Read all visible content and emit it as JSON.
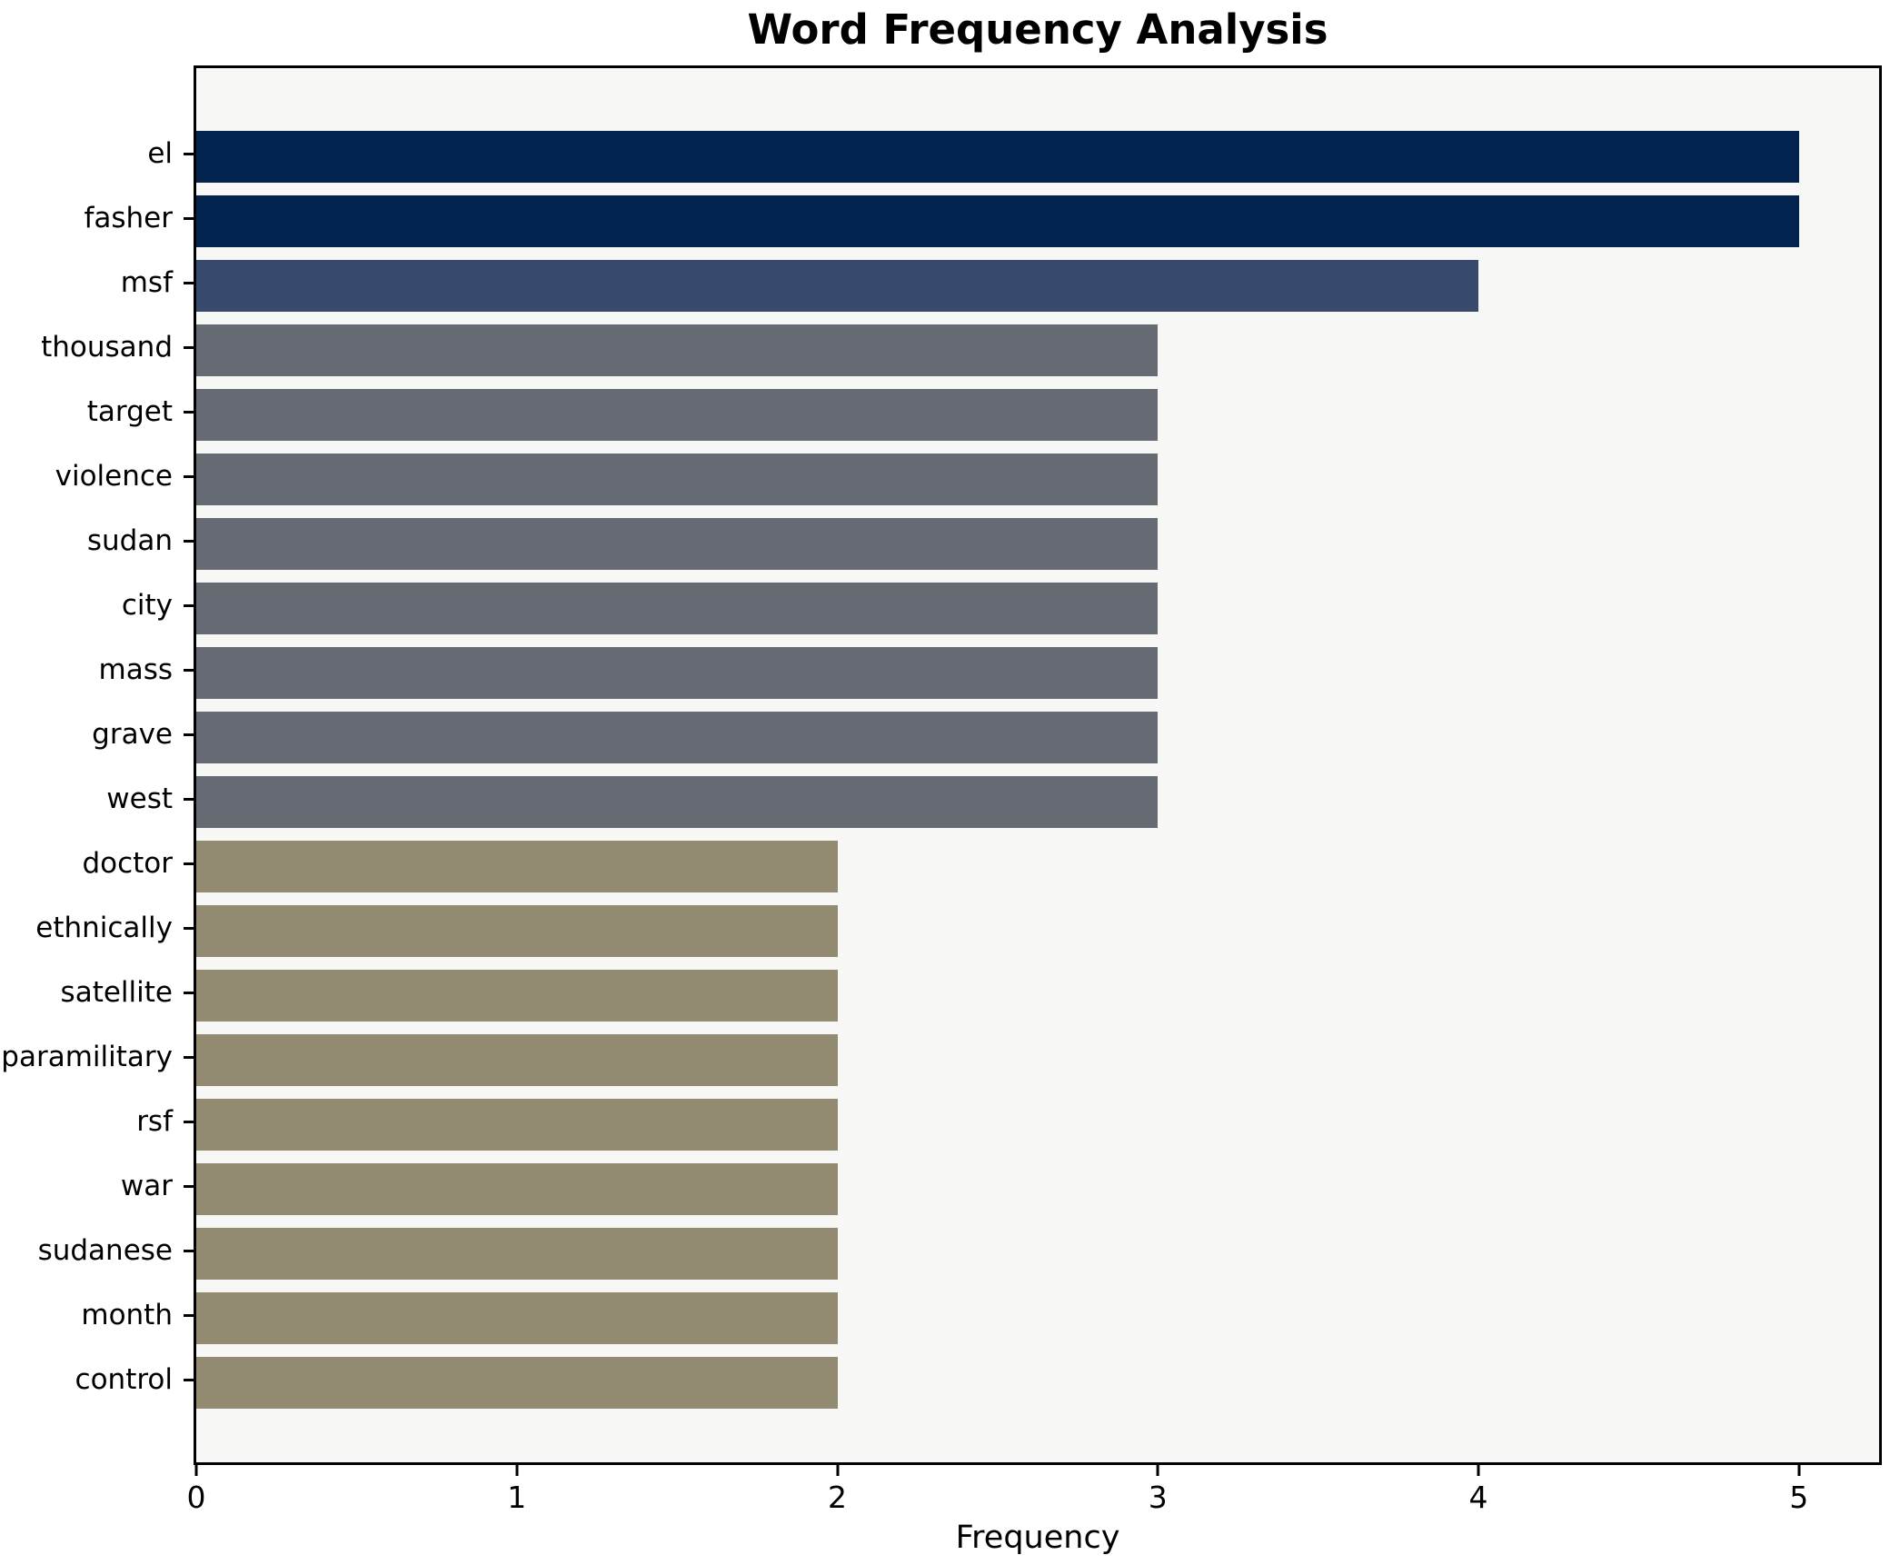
{
  "chart_data": {
    "type": "bar",
    "orientation": "horizontal",
    "title": "Word Frequency Analysis",
    "xlabel": "Frequency",
    "ylabel": "",
    "categories": [
      "el",
      "fasher",
      "msf",
      "thousand",
      "target",
      "violence",
      "sudan",
      "city",
      "mass",
      "grave",
      "west",
      "doctor",
      "ethnically",
      "satellite",
      "paramilitary",
      "rsf",
      "war",
      "sudanese",
      "month",
      "control"
    ],
    "values": [
      5,
      5,
      4,
      3,
      3,
      3,
      3,
      3,
      3,
      3,
      3,
      2,
      2,
      2,
      2,
      2,
      2,
      2,
      2,
      2
    ],
    "bar_colors": [
      "#02234d",
      "#02234d",
      "#37496d",
      "#666a72",
      "#666a72",
      "#666a72",
      "#666a72",
      "#666a72",
      "#666a72",
      "#666a72",
      "#666a72",
      "#938b71",
      "#938b71",
      "#938b71",
      "#938b71",
      "#938b71",
      "#938b71",
      "#938b71",
      "#938b71",
      "#938b71"
    ],
    "palette_by_value": {
      "5": "#02234d",
      "4": "#37496d",
      "3": "#666a72",
      "2": "#938b71"
    },
    "xticks": [
      0,
      1,
      2,
      3,
      4,
      5
    ],
    "xlim": [
      0,
      5.25
    ],
    "grid": false,
    "legend": null,
    "plot_background": "#f7f7f6",
    "figure_background": "#ffffff",
    "spine_color": "#000000"
  }
}
